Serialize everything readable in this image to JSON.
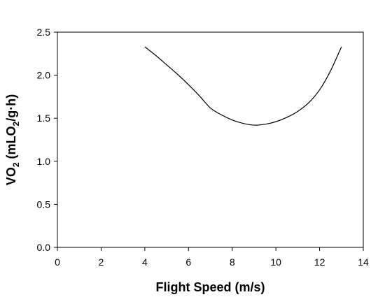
{
  "chart_data": {
    "type": "line",
    "title": "",
    "xlabel": "Flight Speed (m/s)",
    "ylabel": {
      "prefix": "VO",
      "sub1": "2",
      "middle": " (mLO",
      "sub2": "2",
      "suffix": "/g·h)"
    },
    "xlim": [
      0,
      14
    ],
    "ylim": [
      0,
      2.5
    ],
    "xticks": [
      "0",
      "2",
      "4",
      "6",
      "8",
      "10",
      "12",
      "14"
    ],
    "yticks": [
      "0.0",
      "0.5",
      "1.0",
      "1.5",
      "2.0",
      "2.5"
    ],
    "grid": false,
    "legend": "none",
    "line_color": "#000000",
    "series": [
      {
        "x": [
          4.0,
          4.5,
          5.0,
          5.5,
          6.0,
          6.5,
          7.0,
          7.5,
          8.0,
          8.5,
          9.0,
          9.5,
          10.0,
          10.5,
          11.0,
          11.5,
          12.0,
          12.5,
          13.0
        ],
        "y": [
          2.33,
          2.23,
          2.12,
          2.01,
          1.89,
          1.76,
          1.62,
          1.54,
          1.48,
          1.44,
          1.42,
          1.43,
          1.46,
          1.51,
          1.58,
          1.68,
          1.83,
          2.05,
          2.33
        ]
      }
    ]
  }
}
